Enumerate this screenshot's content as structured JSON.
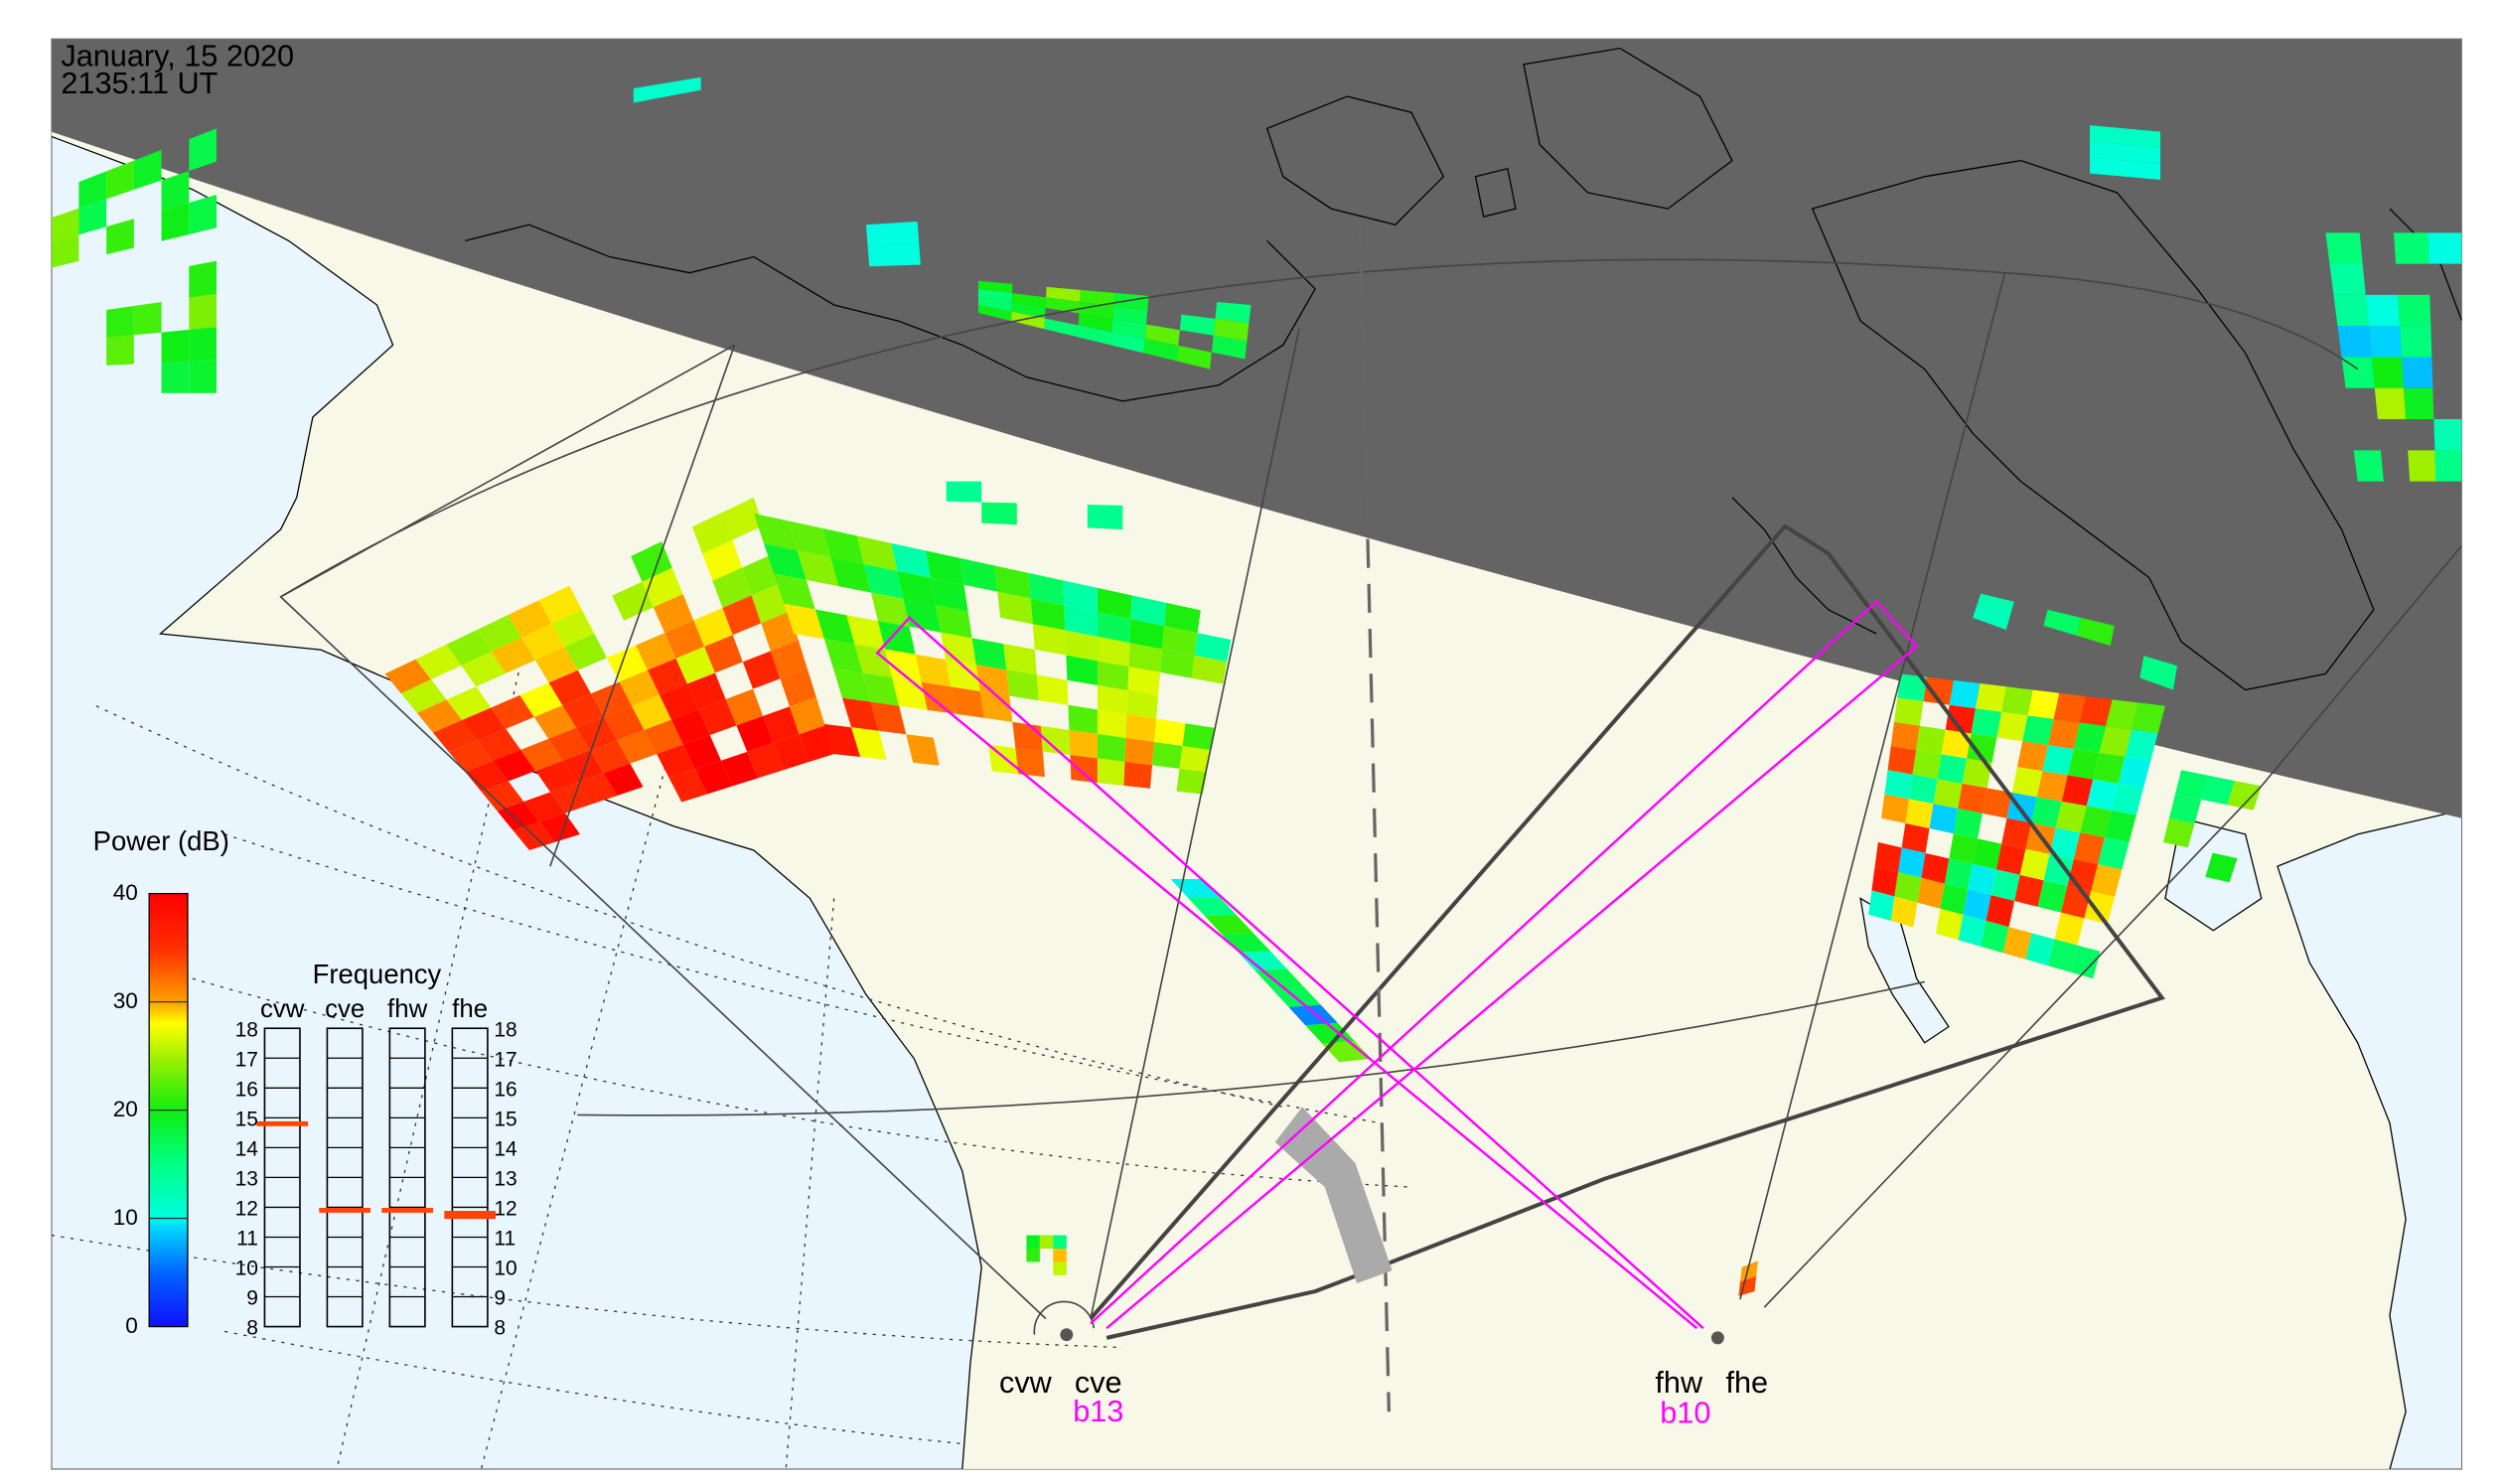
{
  "header": {
    "date": "January, 15 2020",
    "time": "2135:11 UT"
  },
  "colorbar": {
    "title": "Power (dB)",
    "ticks": [
      "40",
      "30",
      "20",
      "10",
      "0"
    ],
    "range": [
      0,
      40
    ]
  },
  "frequency": {
    "title": "Frequency",
    "ticks": [
      "18",
      "17",
      "16",
      "15",
      "14",
      "13",
      "12",
      "11",
      "10",
      "9",
      "8"
    ],
    "range_mhz": [
      8,
      18
    ],
    "radars": [
      {
        "name": "cvw",
        "freq": 14.8
      },
      {
        "name": "cve",
        "freq": 11.9
      },
      {
        "name": "fhw",
        "freq": 11.9
      },
      {
        "name": "fhe",
        "freq": 11.8
      }
    ]
  },
  "stations": {
    "cv_labels": {
      "west": "cvw",
      "east": "cve",
      "beam": "b13"
    },
    "fh_labels": {
      "west": "fhw",
      "east": "fhe",
      "beam": "b10"
    }
  },
  "colors": {
    "land": "#f8f8e8",
    "ocean": "#eaf6fd",
    "night": "#646464",
    "beam": "#ff00ff",
    "fov": "#444444",
    "freq_marker": "#ff4400"
  }
}
